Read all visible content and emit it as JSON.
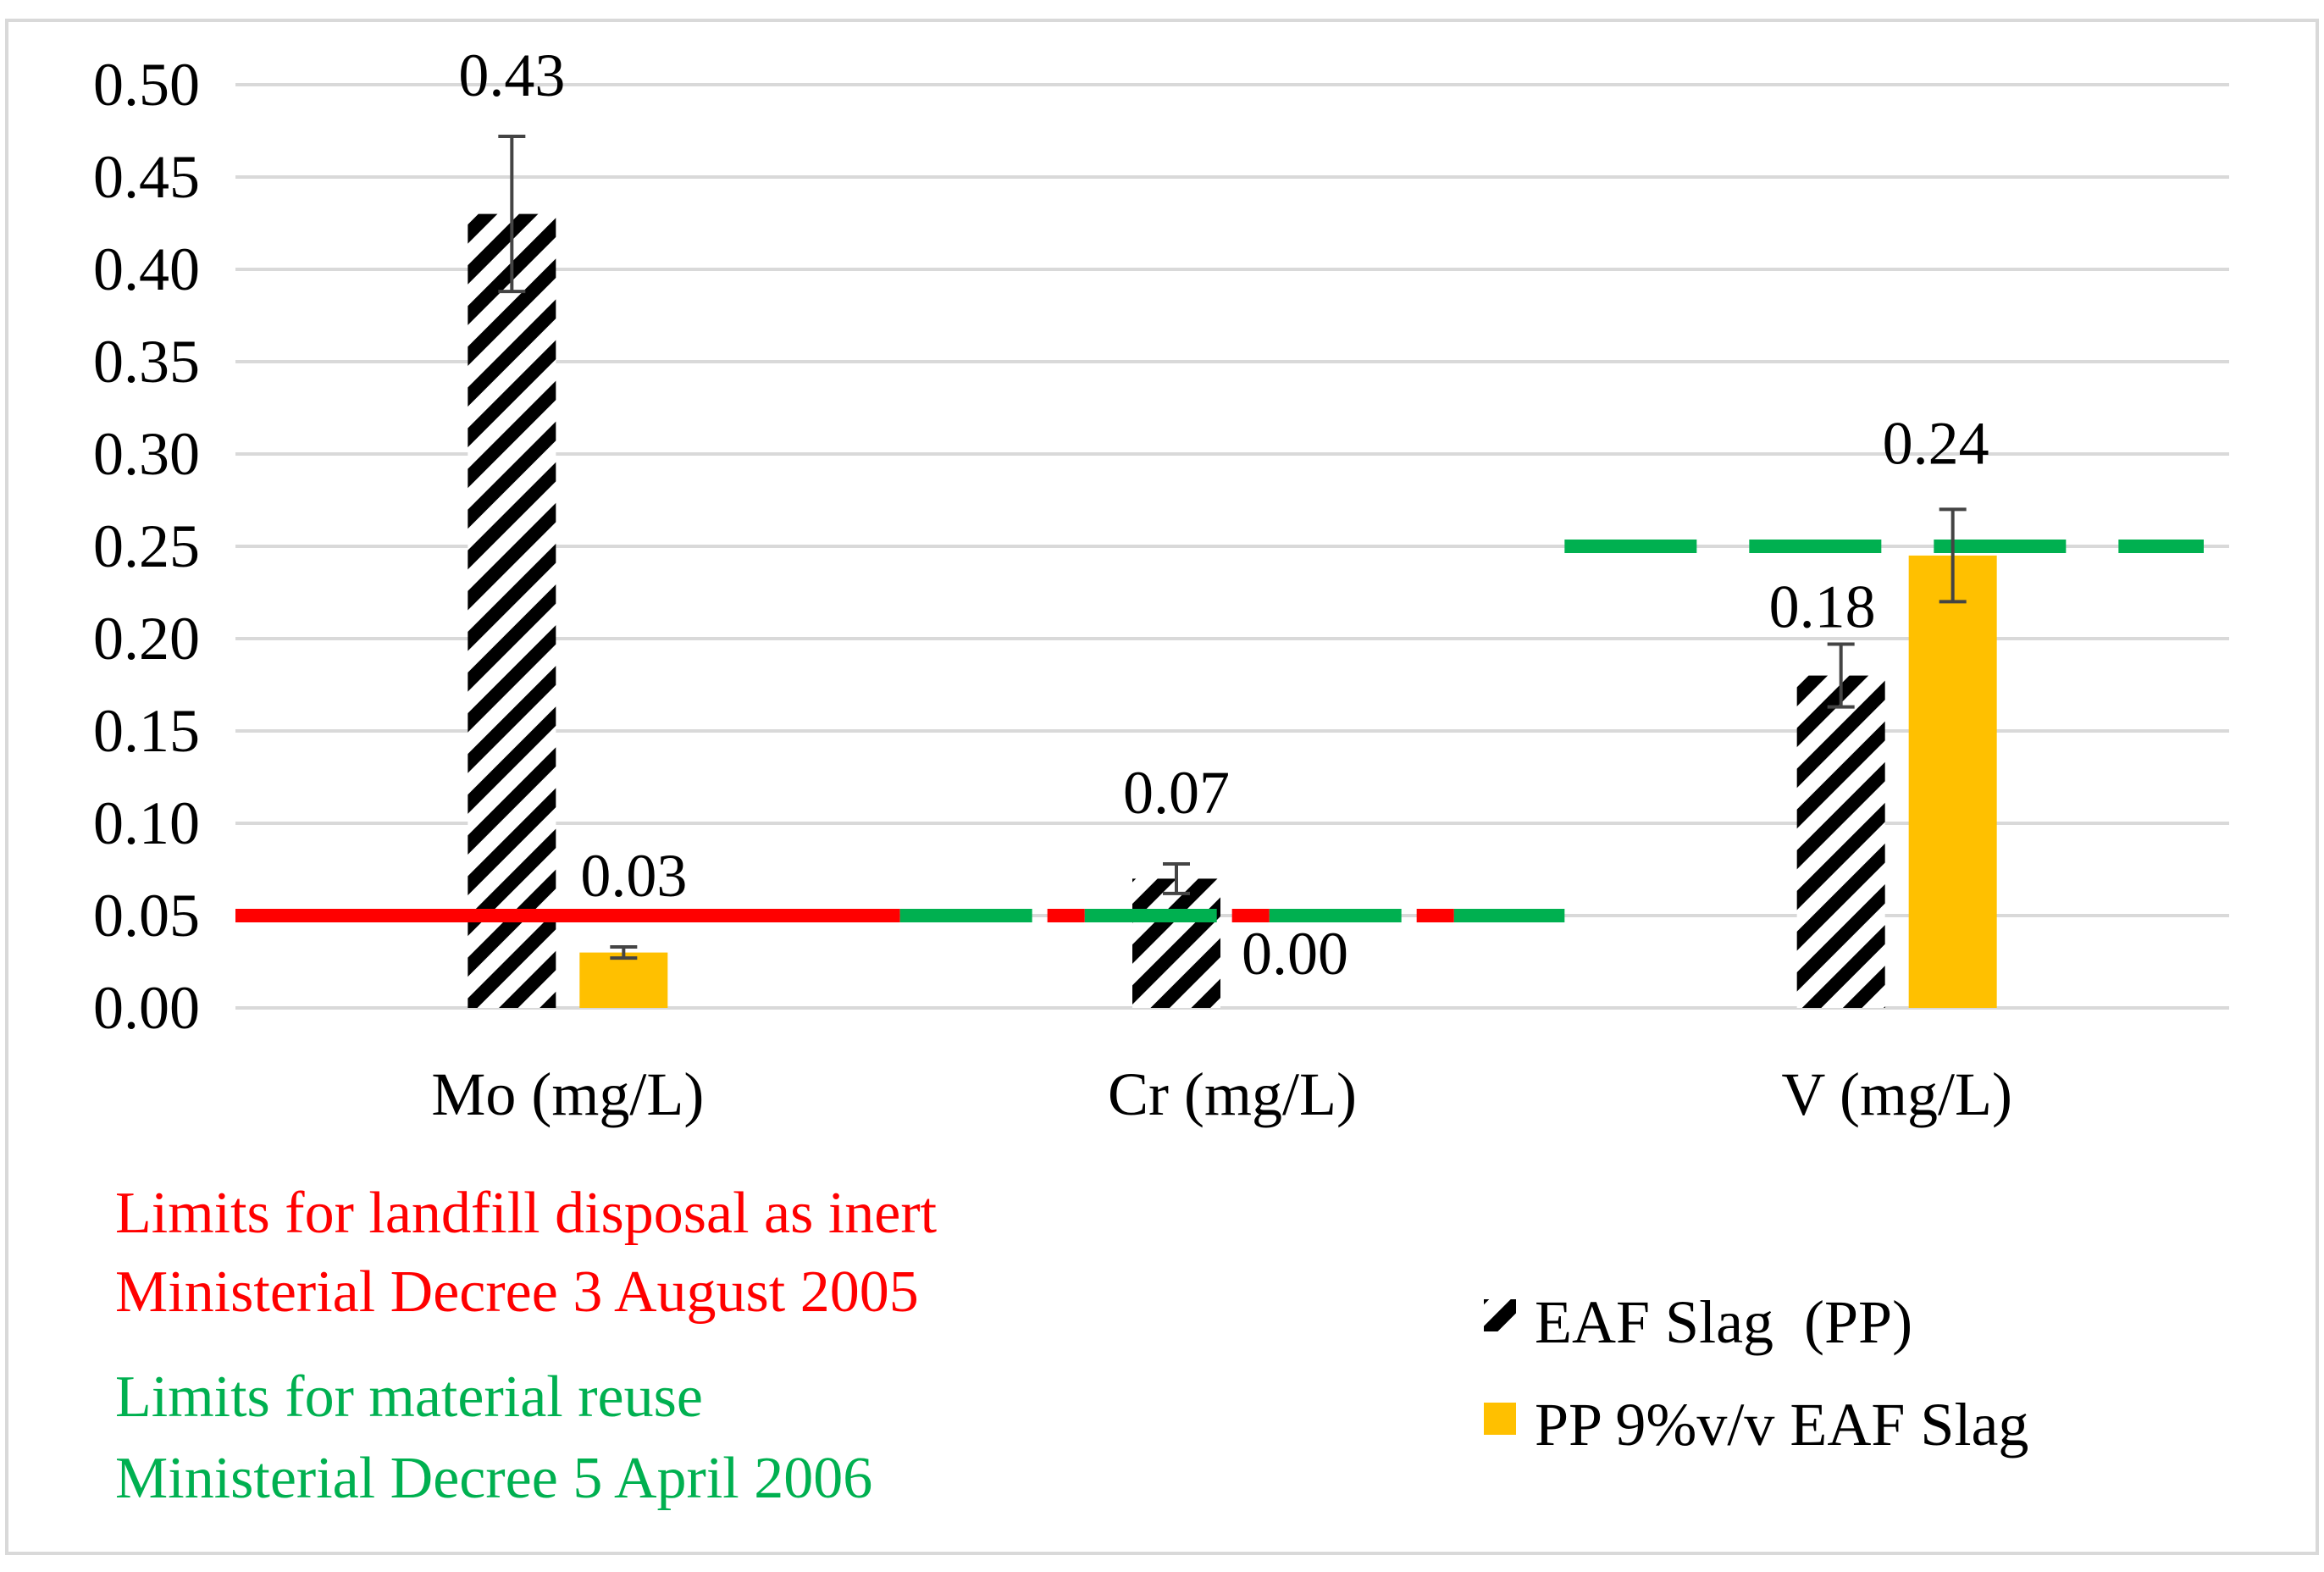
{
  "chart_data": {
    "type": "bar",
    "title": "",
    "xlabel": "",
    "ylabel": "",
    "ylim": [
      0,
      0.5
    ],
    "ytick_step": 0.05,
    "y_tick_labels": [
      "0.00",
      "0.05",
      "0.10",
      "0.15",
      "0.20",
      "0.25",
      "0.30",
      "0.35",
      "0.40",
      "0.45",
      "0.50"
    ],
    "grid": true,
    "categories": [
      "Mo (mg/L)",
      "Cr (mg/L)",
      "V (mg/L)"
    ],
    "series": [
      {
        "name": "EAF Slag  (PP)",
        "pattern": "black-hatched",
        "color": "#000000",
        "values": [
          0.43,
          0.07,
          0.18
        ],
        "labels": [
          "0.43",
          "0.07",
          "0.18"
        ],
        "errors": [
          0.042,
          0.008,
          0.017
        ]
      },
      {
        "name": "PP 9%v/v EAF Slag",
        "pattern": "solid",
        "color": "#FFC000",
        "values": [
          0.03,
          0.0,
          0.245
        ],
        "labels": [
          "0.03",
          "0.00",
          "0.24"
        ],
        "errors": [
          0.003,
          0.0,
          0.025
        ]
      }
    ],
    "reference_lines": [
      {
        "group": "landfill",
        "color": "#FF0000",
        "style": "solid",
        "value": 0.05,
        "categories": [
          "Mo (mg/L)"
        ]
      },
      {
        "group": "reuse",
        "color": "#00B050",
        "style": "dashed",
        "value": 0.05,
        "categories": [
          "Cr (mg/L)"
        ]
      },
      {
        "group": "landfill",
        "color": "#FF0000",
        "style": "dashed",
        "value": 0.05,
        "categories": [
          "Cr (mg/L)"
        ]
      },
      {
        "group": "reuse",
        "color": "#00B050",
        "style": "dashed",
        "value": 0.25,
        "categories": [
          "V (mg/L)"
        ]
      }
    ],
    "annotations": {
      "landfill": {
        "color": "#FF0000",
        "line1": "Limits for landfill disposal as inert",
        "line2": "Ministerial Decree 3 August 2005"
      },
      "reuse": {
        "color": "#00B050",
        "line1": "Limits for material reuse",
        "line2": "Ministerial Decree 5 April 2006"
      }
    },
    "legend_position": "bottom-right"
  }
}
